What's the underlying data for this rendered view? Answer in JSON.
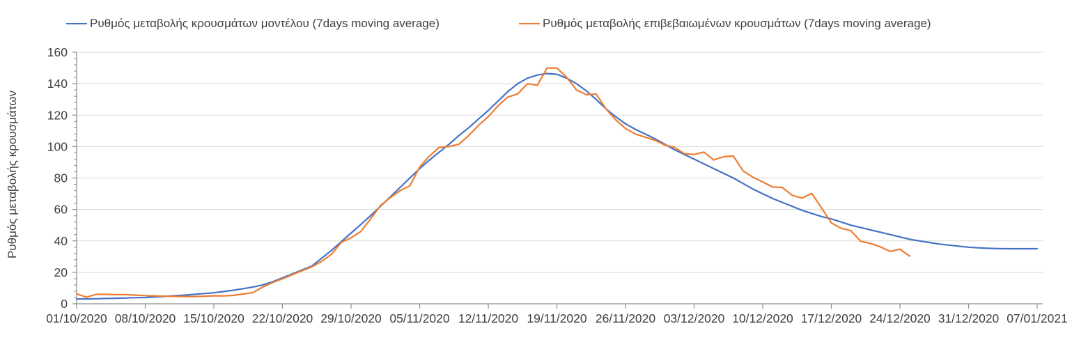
{
  "chart_data": {
    "type": "line",
    "title": "",
    "xlabel": "",
    "ylabel": "Ρυθμός μεταβολής κρουσμάτων",
    "ylim": [
      0,
      160
    ],
    "y_tick_step": 20,
    "y_minor_tick_step": 4,
    "y_tick_labels": [
      "0",
      "20",
      "40",
      "60",
      "80",
      "100",
      "120",
      "140",
      "160"
    ],
    "grid": "horizontal",
    "legend_position": "top",
    "x_tick_labels": [
      "01/10/2020",
      "08/10/2020",
      "15/10/2020",
      "22/10/2020",
      "29/10/2020",
      "05/11/2020",
      "12/11/2020",
      "19/11/2020",
      "26/11/2020",
      "03/12/2020",
      "10/12/2020",
      "17/12/2020",
      "24/12/2020",
      "31/12/2020",
      "07/01/2021"
    ],
    "x_days_per_tick": 7,
    "x_total_days": 98,
    "series": [
      {
        "name": "Ρυθμός μεταβολής κρουσμάτων μοντέλου (7days moving average)",
        "color": "#4472c4",
        "start_day": 0,
        "values": [
          3.0,
          3.1,
          3.2,
          3.4,
          3.5,
          3.7,
          3.9,
          4.0,
          4.3,
          4.7,
          5.1,
          5.5,
          6.0,
          6.5,
          7.0,
          7.8,
          8.6,
          9.6,
          10.7,
          12.0,
          14.0,
          16.5,
          19.0,
          21.5,
          24.0,
          29.0,
          34.0,
          39.5,
          45.0,
          50.5,
          56.0,
          62.0,
          68.0,
          74.0,
          80.0,
          86.0,
          91.5,
          96.5,
          101.5,
          107.0,
          112.0,
          117.5,
          123.0,
          129.0,
          135.0,
          140.0,
          143.5,
          145.5,
          146.5,
          146.0,
          143.5,
          140.0,
          135.5,
          130.0,
          124.0,
          119.0,
          114.5,
          111.0,
          108.0,
          105.0,
          101.5,
          98.0,
          95.0,
          92.0,
          89.0,
          86.0,
          83.0,
          80.0,
          76.5,
          73.0,
          70.0,
          67.0,
          64.5,
          62.0,
          59.5,
          57.5,
          55.5,
          54.0,
          52.0,
          50.0,
          48.5,
          47.0,
          45.5,
          44.0,
          42.5,
          41.0,
          40.0,
          39.0,
          38.0,
          37.3,
          36.6,
          36.0,
          35.6,
          35.3,
          35.1,
          35.0,
          35.0,
          35.0,
          35.0
        ]
      },
      {
        "name": "Ρυθμός μεταβολής επιβεβαιωμένων κρουσμάτων (7days moving average)",
        "color": "#ed7d31",
        "start_day": 0,
        "values": [
          6.3,
          4.2,
          6.0,
          6.0,
          5.8,
          5.8,
          5.5,
          5.2,
          5.0,
          4.8,
          4.7,
          4.6,
          4.6,
          4.8,
          5.1,
          5.0,
          5.3,
          6.2,
          7.2,
          10.7,
          13.5,
          15.9,
          18.5,
          21.0,
          23.5,
          27.0,
          31.5,
          39.0,
          42.0,
          46.0,
          54.0,
          62.5,
          67.5,
          72.0,
          75.0,
          87.0,
          94.0,
          99.5,
          100.0,
          101.5,
          107.0,
          113.5,
          119.0,
          126.0,
          131.5,
          133.5,
          140.0,
          139.0,
          150.0,
          150.0,
          144.0,
          136.0,
          133.0,
          133.5,
          124.0,
          117.0,
          111.5,
          108.0,
          106.0,
          104.0,
          101.0,
          99.5,
          95.5,
          95.0,
          96.5,
          91.5,
          93.5,
          94.0,
          84.5,
          80.5,
          77.5,
          74.3,
          74.0,
          69.0,
          67.2,
          70.2,
          61.0,
          51.5,
          48.0,
          46.5,
          39.8,
          38.4,
          36.2,
          33.3,
          34.7,
          30.3
        ]
      }
    ],
    "colors": {
      "gridline": "#d9d9d9",
      "axis": "#8c8c8c",
      "tick_label": "#3f3f3f",
      "background": "#ffffff"
    }
  }
}
